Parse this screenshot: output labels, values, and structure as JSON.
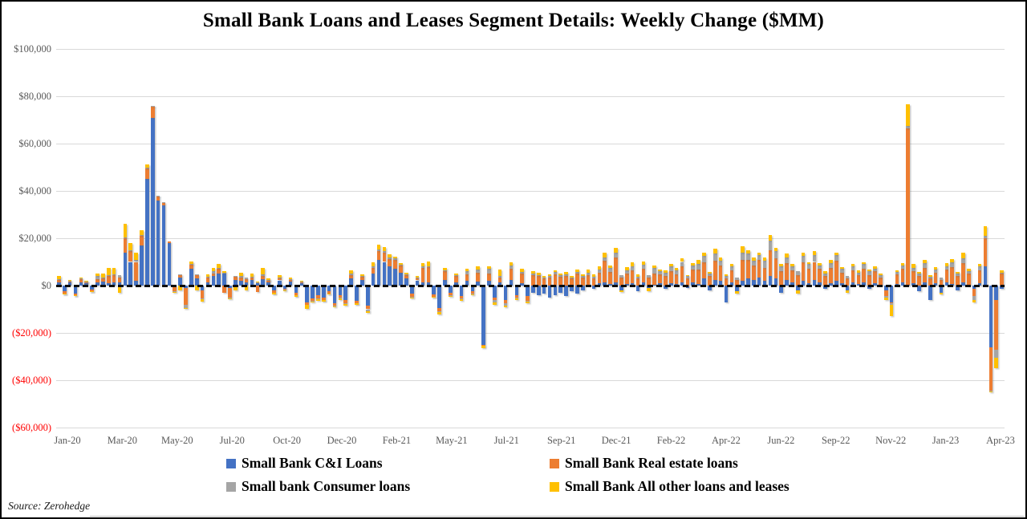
{
  "frame": {
    "source": "Source: Zerohedge"
  },
  "colors": {
    "background": "#FFFFFF",
    "border": "#000000",
    "axis_text": "#595959",
    "negative_tick": "#FF0000",
    "gridline": "#D9D9D9",
    "zero_line": "#0D0D0D"
  },
  "chart_data": {
    "type": "bar",
    "stacked": true,
    "title": "Small Bank Loans and Leases Segment Details: Weekly Change ($MM)",
    "xlabel": "",
    "ylabel": "",
    "units": "$MM",
    "grid": true,
    "legend_position": "bottom",
    "ylim": [
      -60000,
      100000
    ],
    "y_ticks": [
      {
        "value": 100000,
        "label": "$100,000"
      },
      {
        "value": 80000,
        "label": "$80,000"
      },
      {
        "value": 60000,
        "label": "$60,000"
      },
      {
        "value": 40000,
        "label": "$40,000"
      },
      {
        "value": 20000,
        "label": "$20,000"
      },
      {
        "value": 0,
        "label": "$0"
      },
      {
        "value": -20000,
        "label": "($20,000)"
      },
      {
        "value": -40000,
        "label": "($40,000)"
      },
      {
        "value": -60000,
        "label": "($60,000)"
      }
    ],
    "x_ticks": [
      "Jan-20",
      "Mar-20",
      "May-20",
      "Jul-20",
      "Oct-20",
      "Dec-20",
      "Feb-21",
      "May-21",
      "Jul-21",
      "Sep-21",
      "Dec-21",
      "Feb-22",
      "Apr-22",
      "Jun-22",
      "Sep-22",
      "Nov-22",
      "Jan-23",
      "Apr-23"
    ],
    "x_unit": "week",
    "series": [
      {
        "name": "Small Bank C&I Loans",
        "color": "#4472C4",
        "values": [
          1500,
          -2500,
          1200,
          -3500,
          1500,
          1000,
          -1800,
          1200,
          1800,
          1000,
          1200,
          1500,
          14000,
          10000,
          2000,
          17000,
          45000,
          71000,
          36000,
          34000,
          18000,
          -500,
          3500,
          -1000,
          7000,
          3000,
          -2000,
          1500,
          4000,
          5000,
          5000,
          -1000,
          2500,
          2000,
          1500,
          2500,
          1200,
          2800,
          1500,
          -2000,
          2200,
          -1200,
          1800,
          -3000,
          1000,
          -7000,
          -5500,
          -4000,
          -5000,
          -2500,
          -7500,
          -4000,
          -6000,
          3000,
          -6500,
          2500,
          -8500,
          5000,
          11000,
          10000,
          8000,
          7000,
          5500,
          3000,
          -3500,
          2200,
          1500,
          1200,
          -3800,
          -9500,
          2500,
          -3000,
          1500,
          -4500,
          2000,
          -2500,
          1800,
          -25000,
          2200,
          -5000,
          1500,
          -6000,
          2500,
          -4000,
          1000,
          -4500,
          -3000,
          -4000,
          -3500,
          -5000,
          -4000,
          -3000,
          -4500,
          -2500,
          -3500,
          -2000,
          500,
          -1500,
          1000,
          1500,
          800,
          1500,
          -2000,
          800,
          1000,
          -2500,
          1200,
          -1000,
          500,
          1000,
          -1500,
          1000,
          800,
          1500,
          -1000,
          1200,
          800,
          3000,
          -2000,
          2500,
          2000,
          -7000,
          1500,
          -2500,
          2000,
          3000,
          2500,
          3500,
          2000,
          4000,
          3000,
          -3000,
          2500,
          1500,
          -2000,
          2000,
          1000,
          2500,
          1500,
          -1500,
          1000,
          2000,
          1000,
          -2000,
          1500,
          800,
          1200,
          -1500,
          1000,
          500,
          -2000,
          -7000,
          800,
          1500,
          500,
          1000,
          -2500,
          1500,
          -6000,
          1000,
          -3000,
          1200,
          800,
          -2000,
          1500,
          500,
          -1500,
          1000,
          8000,
          -26000,
          -6000,
          -1500
        ]
      },
      {
        "name": "Small Bank Real estate loans",
        "color": "#ED7D31",
        "values": [
          800,
          -800,
          600,
          -500,
          1200,
          600,
          -600,
          1500,
          1200,
          3000,
          3200,
          2000,
          6000,
          4500,
          8000,
          4000,
          4500,
          4800,
          2000,
          1000,
          500,
          -2000,
          1000,
          -7000,
          2000,
          1500,
          -3500,
          1800,
          1200,
          2000,
          -3000,
          -4000,
          1200,
          1500,
          1200,
          1000,
          -2800,
          1400,
          800,
          -1000,
          1000,
          -600,
          800,
          -1000,
          500,
          -1000,
          -1000,
          -1500,
          -1000,
          -800,
          -1000,
          -1200,
          -1500,
          1500,
          -800,
          1200,
          -1500,
          2500,
          3500,
          3800,
          3200,
          4000,
          3000,
          1500,
          -1200,
          1000,
          6000,
          6500,
          -800,
          -1500,
          3500,
          -1000,
          2500,
          -1000,
          2800,
          -800,
          3500,
          -300,
          3000,
          -1200,
          2000,
          -1500,
          4500,
          -1000,
          4000,
          -2000,
          4500,
          4000,
          3000,
          3500,
          4800,
          3800,
          4200,
          3000,
          5000,
          3500,
          4000,
          3000,
          4500,
          9000,
          5000,
          10500,
          3500,
          4200,
          5500,
          3000,
          6000,
          3500,
          4500,
          3800,
          4000,
          5000,
          4000,
          6500,
          3000,
          5500,
          6000,
          7000,
          4000,
          8000,
          6500,
          3000,
          5000,
          2500,
          9000,
          8000,
          6000,
          7500,
          5500,
          11000,
          8500,
          6000,
          7000,
          5000,
          4500,
          8000,
          6000,
          7500,
          5500,
          4000,
          6500,
          8500,
          4500,
          3000,
          5000,
          3500,
          6000,
          4500,
          5000,
          3000,
          -2500,
          -500,
          4000,
          5500,
          66000,
          5000,
          4000,
          6000,
          3000,
          4500,
          2500,
          5500,
          7000,
          4000,
          8000,
          4500,
          -3000,
          5500,
          12000,
          -18500,
          -21000,
          5000
        ]
      },
      {
        "name": "Small bank Consumer loans",
        "color": "#A5A5A5",
        "values": [
          300,
          -100,
          200,
          -100,
          300,
          200,
          -100,
          1200,
          400,
          500,
          400,
          1000,
          500,
          500,
          1000,
          500,
          300,
          200,
          100,
          100,
          0,
          -100,
          300,
          -1500,
          300,
          300,
          -400,
          400,
          1000,
          500,
          300,
          -300,
          300,
          400,
          800,
          300,
          200,
          400,
          200,
          -200,
          300,
          -200,
          200,
          -200,
          200,
          -300,
          -200,
          -300,
          -200,
          -200,
          -300,
          -300,
          -200,
          500,
          -200,
          300,
          -800,
          500,
          900,
          700,
          600,
          400,
          400,
          300,
          -300,
          300,
          500,
          500,
          -200,
          -300,
          500,
          -300,
          400,
          -300,
          1200,
          -300,
          1500,
          -200,
          1800,
          -1000,
          400,
          -1000,
          1500,
          -500,
          800,
          -300,
          600,
          500,
          400,
          500,
          800,
          600,
          700,
          500,
          800,
          600,
          1000,
          800,
          1200,
          1500,
          1500,
          2000,
          800,
          1500,
          1800,
          800,
          1500,
          1000,
          2500,
          1200,
          1500,
          2000,
          1500,
          2000,
          1000,
          1800,
          2500,
          2500,
          1000,
          3000,
          2000,
          1000,
          1500,
          800,
          3000,
          2500,
          2000,
          2000,
          3000,
          4000,
          3000,
          2000,
          2500,
          1500,
          1500,
          2500,
          2000,
          3000,
          1500,
          1200,
          2000,
          2500,
          1500,
          1000,
          1500,
          1200,
          1800,
          1500,
          1200,
          1000,
          -500,
          -500,
          1000,
          1500,
          1000,
          1500,
          1000,
          2000,
          800,
          1200,
          800,
          1500,
          2000,
          1000,
          2000,
          1200,
          -1500,
          1500,
          1000,
          -200,
          -3500,
          500
        ]
      },
      {
        "name": "Small Bank All other loans and leases",
        "color": "#FFC000",
        "values": [
          1500,
          -500,
          500,
          -200,
          500,
          400,
          -300,
          1300,
          1600,
          3000,
          2800,
          -3000,
          5500,
          3000,
          3000,
          2000,
          1500,
          0,
          0,
          0,
          0,
          -400,
          -2000,
          -500,
          1000,
          -2000,
          -800,
          1000,
          1400,
          1500,
          700,
          -500,
          -2000,
          1600,
          -2000,
          1200,
          400,
          3000,
          500,
          -500,
          800,
          -300,
          500,
          -500,
          300,
          -1700,
          -500,
          -700,
          -500,
          -300,
          -500,
          -500,
          -800,
          1500,
          -500,
          800,
          -700,
          2000,
          2000,
          1800,
          1400,
          800,
          600,
          500,
          -500,
          600,
          1500,
          2000,
          -400,
          -1000,
          1000,
          -500,
          800,
          -700,
          1000,
          -400,
          1200,
          -1000,
          1000,
          -800,
          3000,
          -500,
          1500,
          -500,
          1200,
          -700,
          1000,
          800,
          600,
          800,
          1000,
          800,
          900,
          600,
          1000,
          700,
          1200,
          800,
          1500,
          2000,
          1200,
          2000,
          -800,
          1300,
          1500,
          800,
          1500,
          -1500,
          1000,
          800,
          800,
          1000,
          1200,
          1500,
          500,
          1000,
          1500,
          1500,
          800,
          2000,
          1500,
          800,
          1000,
          -1000,
          2500,
          1500,
          1500,
          1000,
          1500,
          2500,
          1500,
          1000,
          1500,
          1000,
          -1500,
          1500,
          1000,
          1500,
          1000,
          800,
          1500,
          1000,
          800,
          -1000,
          1000,
          800,
          1000,
          800,
          800,
          500,
          -1000,
          -5000,
          800,
          1000,
          9000,
          1500,
          800,
          1500,
          500,
          1000,
          -800,
          1200,
          1500,
          800,
          2500,
          1000,
          -1000,
          1000,
          4000,
          -300,
          -4500,
          1000
        ]
      }
    ]
  }
}
